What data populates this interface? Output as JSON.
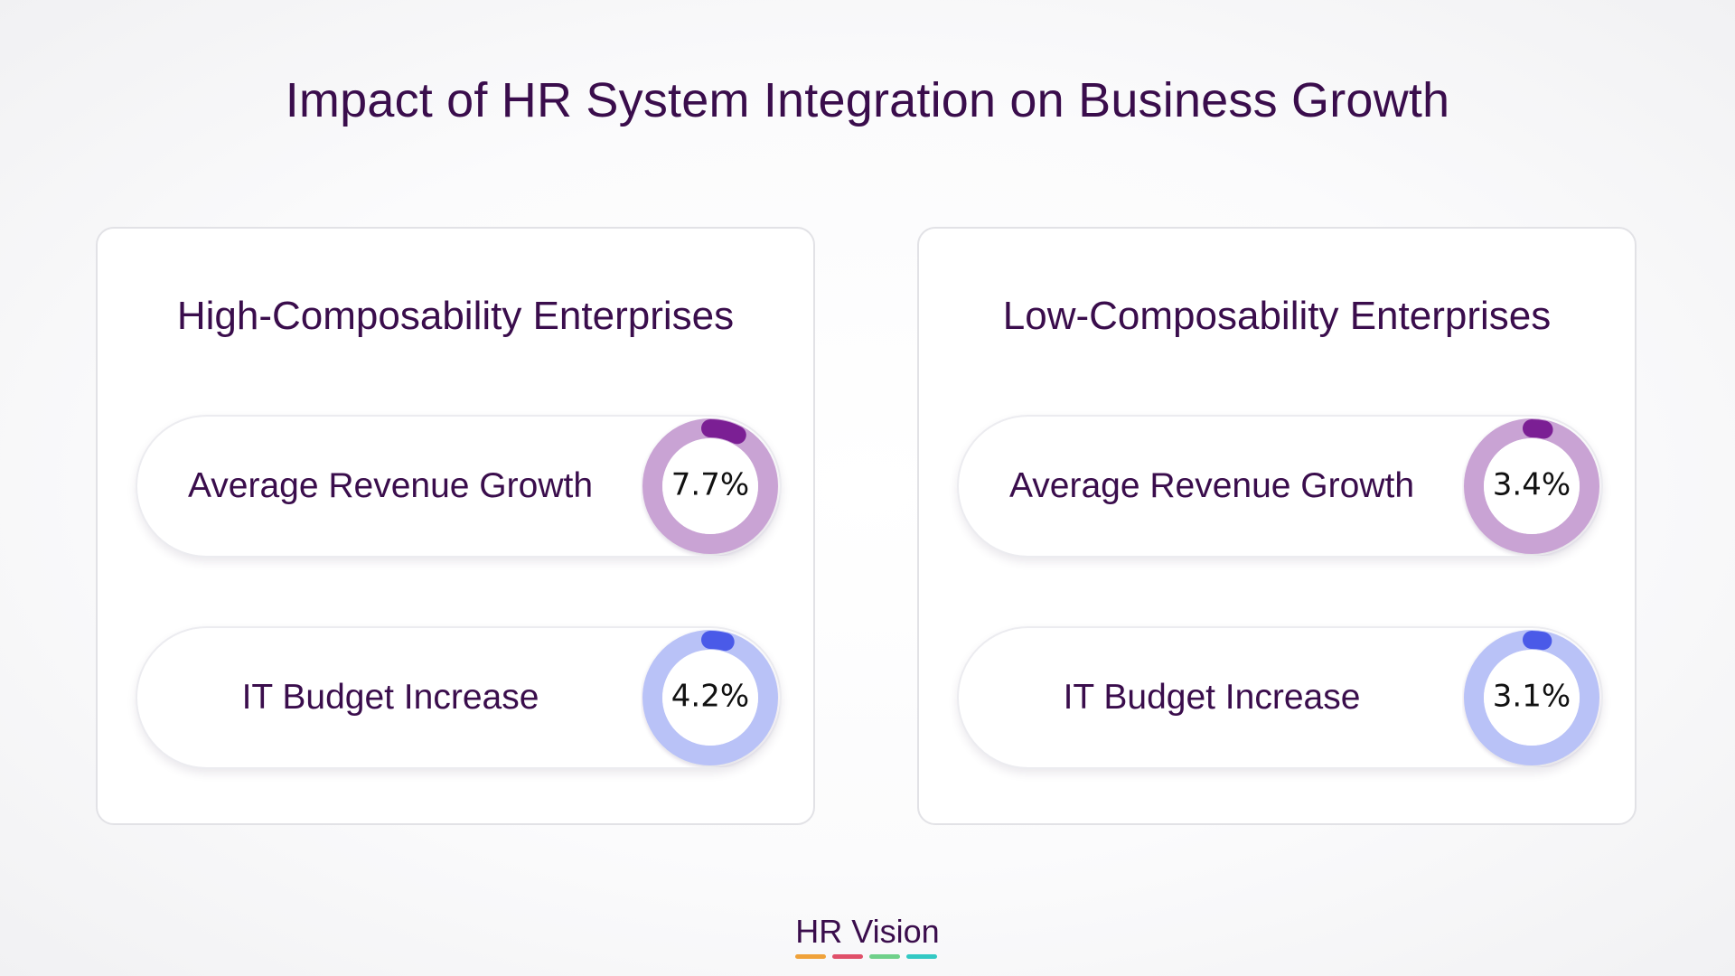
{
  "title": "Impact of HR System Integration on Business Growth",
  "colors": {
    "title_text": "#3a0d4c",
    "revenue_track": "#c9a3d4",
    "revenue_progress": "#7b1f94",
    "budget_track": "#b9c2f7",
    "budget_progress": "#4a5ae8"
  },
  "chart_data": [
    {
      "type": "donut",
      "title": "High-Composability Enterprises",
      "series": [
        {
          "name": "Average Revenue Growth",
          "value": 7.7,
          "label": "7.7%",
          "max": 100
        },
        {
          "name": "IT Budget Increase",
          "value": 4.2,
          "label": "4.2%",
          "max": 100
        }
      ]
    },
    {
      "type": "donut",
      "title": "Low-Composability Enterprises",
      "series": [
        {
          "name": "Average Revenue Growth",
          "value": 3.4,
          "label": "3.4%",
          "max": 100
        },
        {
          "name": "IT Budget Increase",
          "value": 3.1,
          "label": "3.1%",
          "max": 100
        }
      ]
    }
  ],
  "brand": {
    "name": "HR Vision",
    "stripe_colors": [
      "#f0a23a",
      "#e0506a",
      "#6fd08a",
      "#33c9c4"
    ]
  }
}
